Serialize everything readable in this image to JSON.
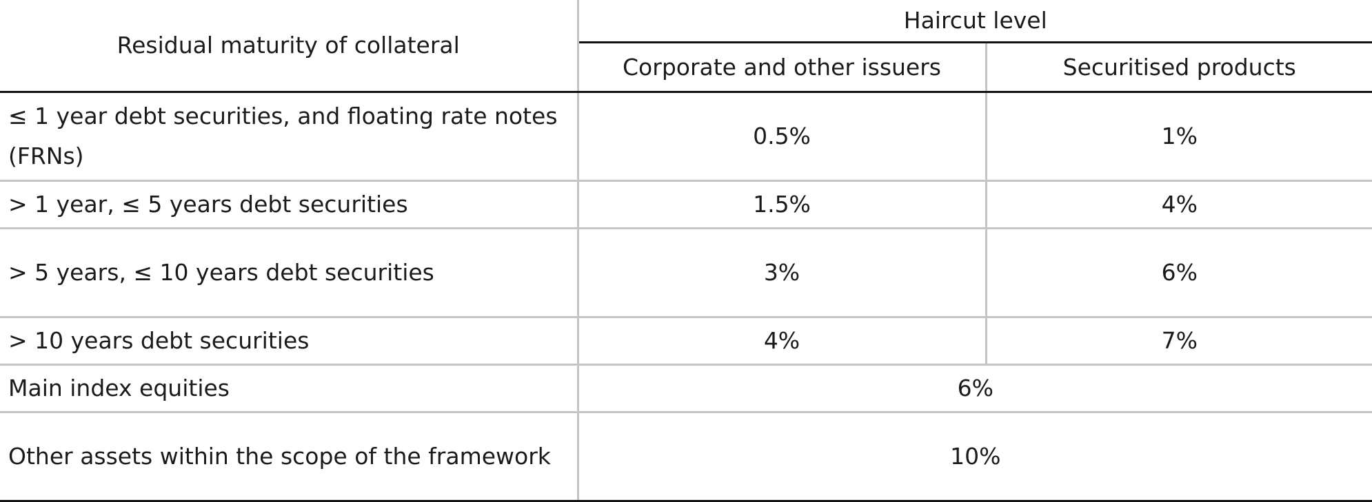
{
  "header": {
    "maturity_label": "Residual maturity of collateral",
    "haircut_level_label": "Haircut level",
    "columns": [
      "Corporate and other issuers",
      "Securitised products"
    ]
  },
  "rows": [
    {
      "label": "≤ 1 year debt securities, and floating rate notes (FRNs)",
      "corporate": "0.5%",
      "securitised": "1%"
    },
    {
      "label": "> 1 year, ≤ 5 years debt securities",
      "corporate": "1.5%",
      "securitised": "4%"
    },
    {
      "label": "> 5 years, ≤ 10 years debt securities",
      "corporate": "3%",
      "securitised": "6%"
    },
    {
      "label": "> 10 years debt securities",
      "corporate": "4%",
      "securitised": "7%"
    },
    {
      "label": "Main index equities",
      "combined": "6%"
    },
    {
      "label": "Other assets within the scope of the framework",
      "combined": "10%"
    }
  ]
}
